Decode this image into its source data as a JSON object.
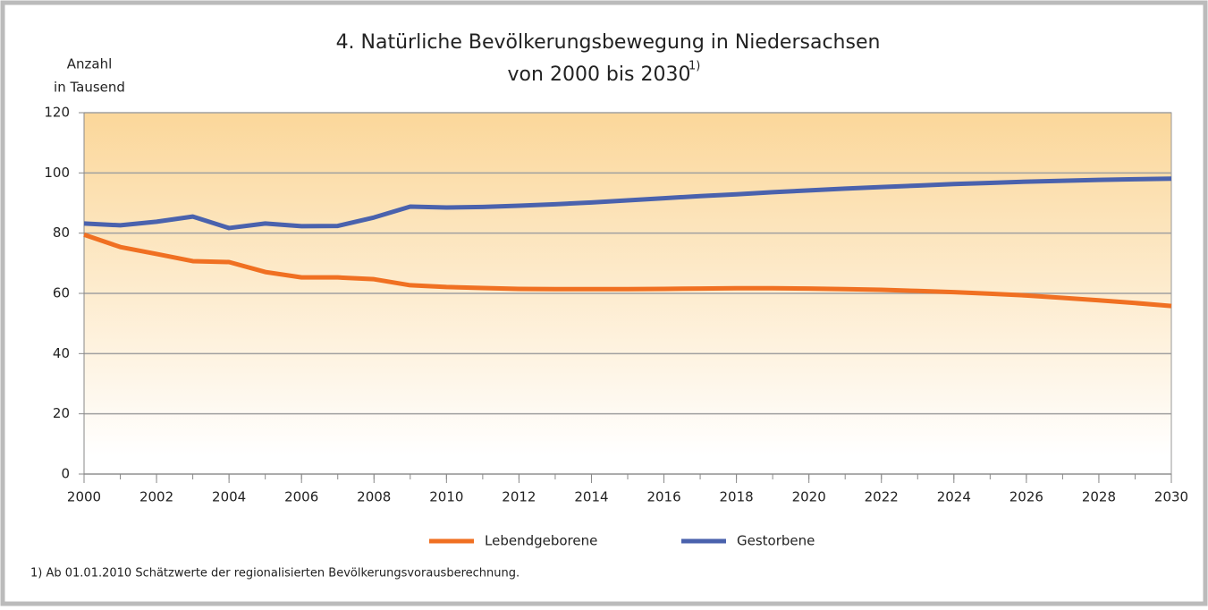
{
  "chart_data": {
    "type": "line",
    "title": [
      "4. Natürliche Bevölkerungsbewegung in Niedersachsen",
      "von 2000 bis 2030"
    ],
    "title_superscript": "1)",
    "ylabel": [
      "Anzahl",
      "in Tausend"
    ],
    "footnote": "1) Ab 01.01.2010 Schätzwerte der regionalisierten Bevölkerungsvorausberechnung.",
    "x": [
      2000,
      2001,
      2002,
      2003,
      2004,
      2005,
      2006,
      2007,
      2008,
      2009,
      2010,
      2011,
      2012,
      2013,
      2014,
      2015,
      2016,
      2017,
      2018,
      2019,
      2020,
      2021,
      2022,
      2023,
      2024,
      2025,
      2026,
      2027,
      2028,
      2029,
      2030
    ],
    "series": [
      {
        "name": "Lebendgeborene",
        "color": "#f07022",
        "values": [
          79.5,
          75.4,
          73.1,
          70.7,
          70.4,
          67.1,
          65.3,
          65.3,
          64.7,
          62.7,
          62.1,
          61.8,
          61.5,
          61.4,
          61.4,
          61.4,
          61.5,
          61.6,
          61.7,
          61.7,
          61.6,
          61.4,
          61.2,
          60.8,
          60.4,
          59.9,
          59.3,
          58.5,
          57.7,
          56.8,
          55.8
        ]
      },
      {
        "name": "Gestorbene",
        "color": "#4a62ad",
        "values": [
          83.2,
          82.6,
          83.8,
          85.5,
          81.7,
          83.2,
          82.3,
          82.4,
          85.2,
          88.8,
          88.5,
          88.7,
          89.1,
          89.6,
          90.2,
          90.9,
          91.6,
          92.3,
          92.9,
          93.6,
          94.2,
          94.8,
          95.3,
          95.8,
          96.3,
          96.7,
          97.1,
          97.4,
          97.7,
          97.9,
          98.1
        ]
      }
    ],
    "xlim": [
      2000,
      2030
    ],
    "xticks": [
      2000,
      2002,
      2004,
      2006,
      2008,
      2010,
      2012,
      2014,
      2016,
      2018,
      2020,
      2022,
      2024,
      2026,
      2028,
      2030
    ],
    "ylim": [
      0,
      120
    ],
    "yticks": [
      0,
      20,
      40,
      60,
      80,
      100,
      120
    ],
    "grid": true,
    "legend": "bottom"
  }
}
